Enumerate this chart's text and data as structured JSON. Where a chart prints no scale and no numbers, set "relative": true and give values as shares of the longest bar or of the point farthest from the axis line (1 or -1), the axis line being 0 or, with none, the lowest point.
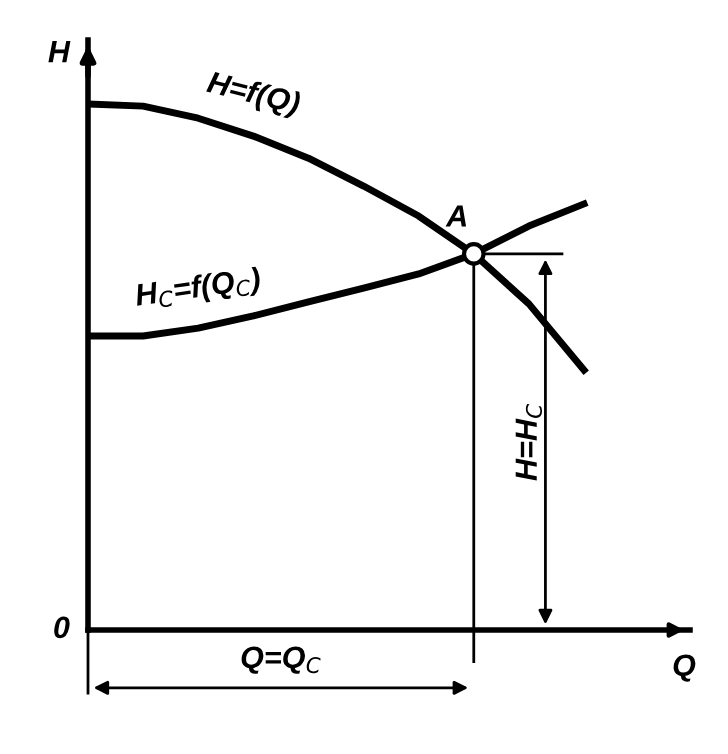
{
  "chart_data": {
    "type": "line",
    "relative": true,
    "xlabel": "Q",
    "ylabel": "H",
    "categories": [
      null,
      null,
      null,
      null,
      null,
      null,
      null,
      null,
      null,
      null
    ],
    "series": [
      {
        "name": "H=f(Q)",
        "color": "#000000",
        "values": [
          1.0,
          0.996,
          0.973,
          0.939,
          0.897,
          0.844,
          0.787,
          0.715,
          0.62,
          0.494
        ]
      },
      {
        "name": "H$_{C}$=f(Q$_{C}$)",
        "color": "#000000",
        "values": [
          0.559,
          0.559,
          0.574,
          0.597,
          0.624,
          0.65,
          0.677,
          0.715,
          0.768,
          0.81
        ]
      }
    ],
    "annotations": [
      "A",
      "H=H$_{C}$",
      "Q=Q$_{C}$",
      "0"
    ],
    "marker": "none",
    "line_style": "solid"
  }
}
